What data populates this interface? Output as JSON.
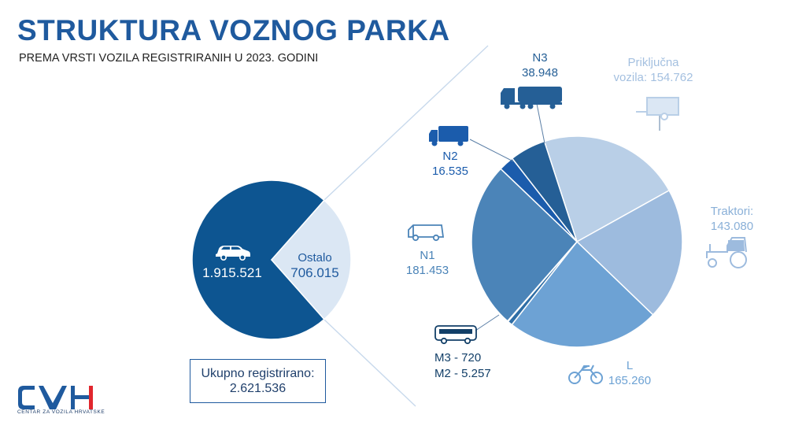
{
  "title": "STRUKTURA VOZNOG PARKA",
  "subtitle": "PREMA VRSTI VOZILA REGISTRIRANIH U 2023. GODINI",
  "total": {
    "label": "Ukupno registrirano:",
    "value": "2.621.536"
  },
  "logo": {
    "text": "CVH",
    "caption": "CENTAR ZA VOZILA HRVATSKE"
  },
  "colors": {
    "title": "#1f5a9e",
    "dark": "#0d5591",
    "light": "#dbe7f4"
  },
  "chart_data": [
    {
      "type": "pie",
      "slices": [
        {
          "label": "",
          "value": 1915521,
          "value_text": "1.915.521",
          "color": "#0d5591",
          "icon": "car-icon"
        },
        {
          "label": "Ostalo",
          "value": 706015,
          "value_text": "706.015",
          "color": "#dbe7f4"
        }
      ]
    },
    {
      "type": "pie",
      "slices": [
        {
          "label": "Priključna vozila:",
          "label_lines": [
            "Priključna",
            "vozila: 154.762"
          ],
          "value": 154762,
          "value_text": "154.762",
          "color": "#b9cfe7",
          "icon": "trailer-icon"
        },
        {
          "label": "Traktori:",
          "label_lines": [
            "Traktori:",
            "143.080"
          ],
          "value": 143080,
          "value_text": "143.080",
          "color": "#9dbbde",
          "icon": "tractor-icon"
        },
        {
          "label": "L",
          "label_lines": [
            "L",
            "165.260"
          ],
          "value": 165260,
          "value_text": "165.260",
          "color": "#6da2d4",
          "icon": "motorcycle-icon"
        },
        {
          "label": "M2",
          "label_lines": [
            "M2 - 5.257"
          ],
          "value": 5257,
          "value_text": "5.257",
          "color": "#2f6ea6",
          "icon": "bus-icon"
        },
        {
          "label": "M3",
          "label_lines": [
            "M3 - 720"
          ],
          "value": 720,
          "value_text": "720",
          "color": "#123f68",
          "icon": "bus-icon"
        },
        {
          "label": "N1",
          "label_lines": [
            "N1",
            "181.453"
          ],
          "value": 181453,
          "value_text": "181.453",
          "color": "#4b84b8",
          "icon": "van-icon"
        },
        {
          "label": "N2",
          "label_lines": [
            "N2",
            "16.535"
          ],
          "value": 16535,
          "value_text": "16.535",
          "color": "#1b5cac",
          "icon": "truck-icon"
        },
        {
          "label": "N3",
          "label_lines": [
            "N3",
            "38.948"
          ],
          "value": 38948,
          "value_text": "38.948",
          "color": "#255f96",
          "icon": "semi-truck-icon"
        }
      ]
    }
  ]
}
